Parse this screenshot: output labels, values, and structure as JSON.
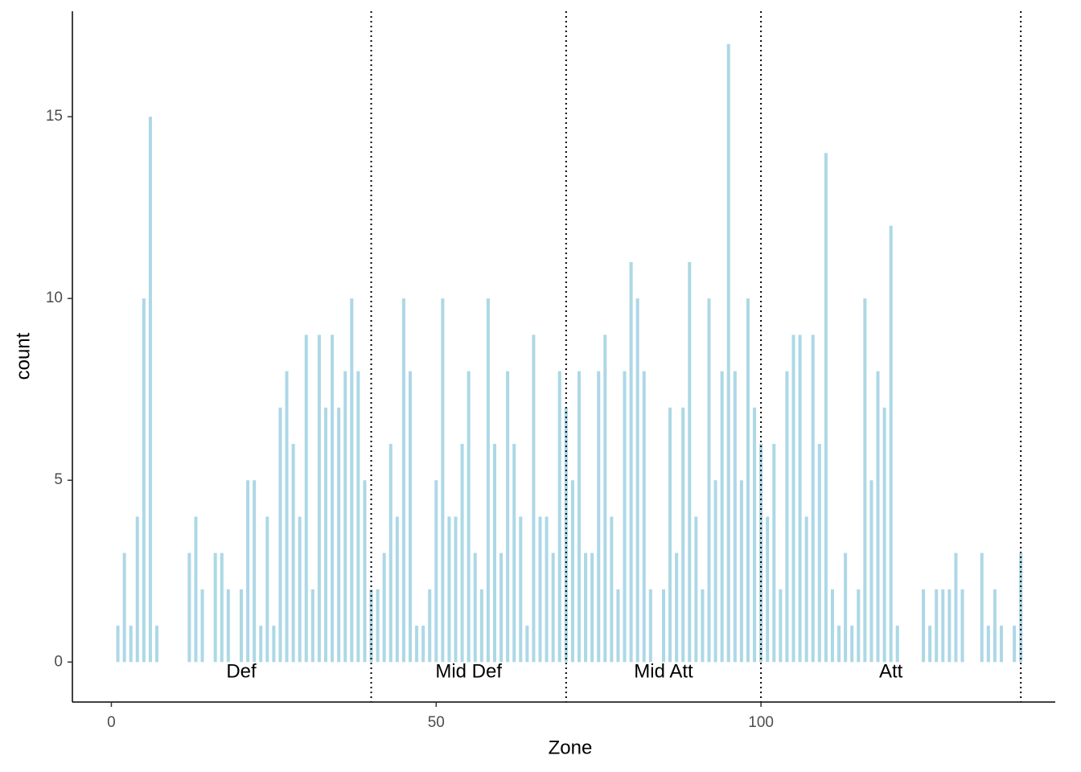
{
  "chart_data": {
    "type": "bar",
    "x_label": "Zone",
    "y_label": "count",
    "x": [
      1,
      2,
      3,
      4,
      5,
      6,
      7,
      12,
      13,
      14,
      16,
      17,
      18,
      20,
      21,
      22,
      23,
      24,
      25,
      26,
      27,
      28,
      29,
      30,
      31,
      32,
      33,
      34,
      35,
      36,
      37,
      38,
      39,
      40,
      41,
      42,
      43,
      44,
      45,
      46,
      47,
      48,
      49,
      50,
      51,
      52,
      53,
      54,
      55,
      56,
      57,
      58,
      59,
      60,
      61,
      62,
      63,
      64,
      65,
      66,
      67,
      68,
      69,
      70,
      71,
      72,
      73,
      74,
      75,
      76,
      77,
      78,
      79,
      80,
      81,
      82,
      83,
      85,
      86,
      87,
      88,
      89,
      90,
      91,
      92,
      93,
      94,
      95,
      96,
      97,
      98,
      99,
      100,
      101,
      102,
      103,
      104,
      105,
      106,
      107,
      108,
      109,
      110,
      111,
      112,
      113,
      114,
      115,
      116,
      117,
      118,
      119,
      120,
      121,
      125,
      126,
      127,
      128,
      129,
      130,
      131,
      134,
      135,
      136,
      137,
      139,
      140
    ],
    "values": [
      1,
      3,
      1,
      4,
      10,
      15,
      1,
      3,
      4,
      2,
      3,
      3,
      2,
      2,
      5,
      5,
      1,
      4,
      1,
      7,
      8,
      6,
      4,
      9,
      2,
      9,
      7,
      9,
      7,
      8,
      10,
      8,
      5,
      2,
      2,
      3,
      6,
      4,
      10,
      8,
      1,
      1,
      2,
      5,
      10,
      4,
      4,
      6,
      8,
      3,
      2,
      10,
      6,
      3,
      8,
      6,
      4,
      1,
      9,
      4,
      4,
      3,
      8,
      7,
      5,
      8,
      3,
      3,
      8,
      9,
      4,
      2,
      8,
      11,
      10,
      8,
      2,
      2,
      7,
      3,
      7,
      11,
      4,
      2,
      10,
      5,
      8,
      17,
      8,
      5,
      10,
      7,
      6,
      4,
      6,
      2,
      8,
      9,
      9,
      4,
      9,
      6,
      14,
      2,
      1,
      3,
      1,
      2,
      10,
      5,
      8,
      7,
      12,
      1,
      2,
      1,
      2,
      2,
      2,
      3,
      2,
      3,
      1,
      2,
      1,
      1,
      3
    ],
    "color": "#add8e6",
    "vlines": [
      40,
      70,
      100,
      140
    ],
    "zone_labels": [
      "Def",
      "Mid Def",
      "Mid Att",
      "Att"
    ],
    "xlim": [
      -6,
      145.3
    ],
    "xticks": [
      0,
      50,
      100
    ],
    "ylim": [
      -1.1,
      17.9
    ],
    "yticks": [
      0,
      5,
      10,
      15
    ]
  }
}
